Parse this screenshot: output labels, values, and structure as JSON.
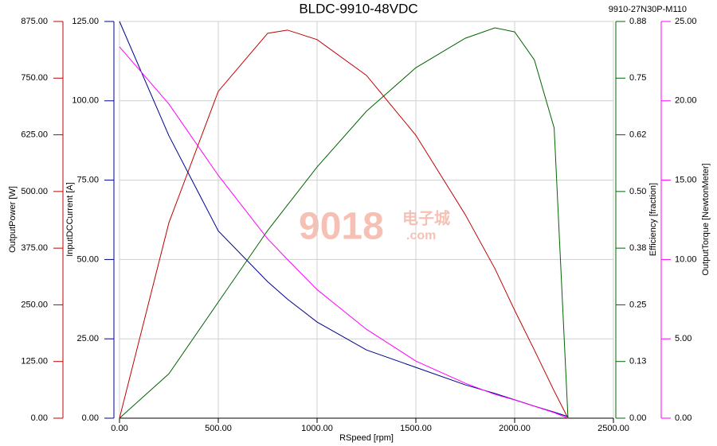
{
  "chart_data": {
    "type": "line",
    "title": "BLDC-9910-48VDC",
    "subtitle": "9910-27N30P-M110",
    "watermark": [
      "9018",
      "电子城",
      ".com"
    ],
    "xlabel": "RSpeed [rpm]",
    "ylabel": "OutputPower [W]",
    "y2label": "InputDCCurrent [A]",
    "y3label": "Efficiency [fraction]",
    "y4label": "OutputTorque [NewtonMeter]",
    "grid": true,
    "xlim": [
      0,
      2500
    ],
    "xticks": [
      {
        "value": 0,
        "label": "0.00"
      },
      {
        "value": 500,
        "label": "500.00"
      },
      {
        "value": 1000,
        "label": "1000.00"
      },
      {
        "value": 1500,
        "label": "1500.00"
      },
      {
        "value": 2000,
        "label": "2000.00"
      },
      {
        "value": 2500,
        "label": "2500.00"
      }
    ],
    "ylim": [
      0,
      875
    ],
    "yticks": [
      {
        "value": 0,
        "label": "0.00"
      },
      {
        "value": 125,
        "label": "125.00"
      },
      {
        "value": 250,
        "label": "250.00"
      },
      {
        "value": 375,
        "label": "375.00"
      },
      {
        "value": 500,
        "label": "500.00"
      },
      {
        "value": 625,
        "label": "625.00"
      },
      {
        "value": 750,
        "label": "750.00"
      },
      {
        "value": 875,
        "label": "875.00"
      }
    ],
    "y2lim": [
      0,
      125
    ],
    "y2ticks": [
      {
        "value": 0,
        "label": "0.00"
      },
      {
        "value": 25,
        "label": "25.00"
      },
      {
        "value": 50,
        "label": "50.00"
      },
      {
        "value": 75,
        "label": "75.00"
      },
      {
        "value": 100,
        "label": "100.00"
      },
      {
        "value": 125,
        "label": "125.00"
      }
    ],
    "y3lim": [
      0,
      0.875
    ],
    "y3ticks": [
      {
        "value": 0,
        "label": "0.00"
      },
      {
        "value": 0.125,
        "label": "0.13"
      },
      {
        "value": 0.25,
        "label": "0.25"
      },
      {
        "value": 0.375,
        "label": "0.38"
      },
      {
        "value": 0.5,
        "label": "0.50"
      },
      {
        "value": 0.625,
        "label": "0.62"
      },
      {
        "value": 0.75,
        "label": "0.75"
      },
      {
        "value": 0.875,
        "label": "0.88"
      }
    ],
    "y4lim": [
      0,
      25
    ],
    "y4ticks": [
      {
        "value": 0,
        "label": "0.00"
      },
      {
        "value": 5,
        "label": "5.00"
      },
      {
        "value": 10,
        "label": "10.00"
      },
      {
        "value": 15,
        "label": "15.00"
      },
      {
        "value": 20,
        "label": "20.00"
      },
      {
        "value": 25,
        "label": "25.00"
      }
    ],
    "x": [
      0,
      250,
      500,
      750,
      850,
      1000,
      1250,
      1500,
      1750,
      1900,
      2000,
      2100,
      2200,
      2270
    ],
    "series": [
      {
        "axis": "y",
        "color": "#c00000",
        "values": [
          0,
          431,
          721,
          849,
          856,
          835,
          756,
          624,
          449,
          330,
          238,
          150,
          60,
          0
        ]
      },
      {
        "axis": "y2",
        "color": "#00008b",
        "values": [
          125,
          89,
          59,
          43,
          37.5,
          30.3,
          21.5,
          16,
          10.5,
          7.8,
          5.8,
          3.8,
          1.9,
          0.5
        ]
      },
      {
        "axis": "y3",
        "color": "#006400",
        "values": [
          0,
          0.098,
          0.256,
          0.414,
          0.47,
          0.554,
          0.677,
          0.773,
          0.838,
          0.861,
          0.852,
          0.79,
          0.64,
          0
        ]
      },
      {
        "axis": "y4",
        "color": "#ff00ff",
        "values": [
          23.4,
          19.8,
          15.3,
          11.3,
          10,
          8.1,
          5.6,
          3.6,
          2.2,
          1.5,
          1.15,
          0.75,
          0.35,
          0
        ]
      }
    ]
  }
}
